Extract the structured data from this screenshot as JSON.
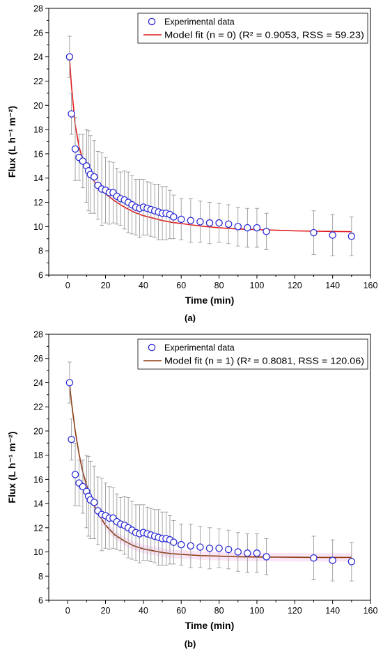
{
  "chart_data": [
    {
      "type": "scatter",
      "panel_label": "(a)",
      "xlabel": "Time (min)",
      "ylabel": "Flux (L h⁻¹ m⁻²)",
      "xlim": [
        -10,
        160
      ],
      "ylim": [
        6,
        28
      ],
      "xticks": [
        0,
        20,
        40,
        60,
        80,
        100,
        120,
        140,
        160
      ],
      "yticks": [
        6,
        8,
        10,
        12,
        14,
        16,
        18,
        20,
        22,
        24,
        26,
        28
      ],
      "grid": false,
      "legend_position": "top-right",
      "colors": {
        "points": "#2b2bd6",
        "fit": "#e31a1c",
        "errorbars": "#9a9a9a"
      },
      "series": [
        {
          "name": "Experimental data",
          "kind": "scatter",
          "x": [
            1,
            2,
            4,
            6,
            8,
            10,
            11,
            12,
            14,
            16,
            18,
            20,
            22,
            24,
            26,
            28,
            30,
            32,
            34,
            36,
            38,
            40,
            42,
            44,
            46,
            48,
            50,
            52,
            54,
            56,
            60,
            65,
            70,
            75,
            80,
            85,
            90,
            95,
            100,
            105,
            130,
            140,
            150
          ],
          "y": [
            24.0,
            19.3,
            16.4,
            15.7,
            15.4,
            15.0,
            14.6,
            14.3,
            14.1,
            13.4,
            13.1,
            13.0,
            12.8,
            12.8,
            12.5,
            12.3,
            12.2,
            12.0,
            11.8,
            11.6,
            11.5,
            11.6,
            11.5,
            11.4,
            11.3,
            11.2,
            11.1,
            11.1,
            11.0,
            10.8,
            10.6,
            10.5,
            10.4,
            10.3,
            10.3,
            10.2,
            10.0,
            9.9,
            9.9,
            9.6,
            9.5,
            9.3,
            9.2
          ],
          "yerr": [
            1.7,
            1.7,
            2.6,
            1.9,
            2.2,
            3.0,
            3.3,
            3.2,
            3.0,
            2.8,
            3.0,
            2.7,
            2.6,
            2.5,
            2.3,
            2.2,
            2.4,
            2.5,
            2.4,
            2.3,
            2.4,
            2.3,
            2.2,
            2.2,
            2.2,
            2.3,
            2.2,
            2.2,
            2.0,
            1.8,
            1.7,
            1.8,
            1.7,
            1.7,
            1.6,
            1.6,
            1.6,
            1.6,
            1.6,
            1.5,
            1.8,
            1.7,
            1.6
          ]
        },
        {
          "name": "Model fit (n = 0) (R² = 0.9053, RSS = 59.23)",
          "kind": "line",
          "x": [
            1,
            2,
            4,
            6,
            8,
            10,
            12,
            15,
            20,
            25,
            30,
            35,
            40,
            45,
            50,
            55,
            60,
            70,
            80,
            90,
            100,
            110,
            120,
            130,
            140,
            150
          ],
          "y": [
            23.8,
            21.6,
            18.4,
            16.6,
            15.5,
            14.8,
            14.2,
            13.5,
            12.7,
            12.1,
            11.6,
            11.2,
            10.9,
            10.7,
            10.5,
            10.35,
            10.25,
            10.05,
            9.9,
            9.8,
            9.75,
            9.7,
            9.65,
            9.62,
            9.6,
            9.58
          ]
        }
      ]
    },
    {
      "type": "scatter",
      "panel_label": "(b)",
      "xlabel": "Time (min)",
      "ylabel": "Flux (L h⁻¹ m⁻²)",
      "xlim": [
        -10,
        160
      ],
      "ylim": [
        6,
        28
      ],
      "xticks": [
        0,
        20,
        40,
        60,
        80,
        100,
        120,
        140,
        160
      ],
      "yticks": [
        6,
        8,
        10,
        12,
        14,
        16,
        18,
        20,
        22,
        24,
        26,
        28
      ],
      "grid": false,
      "legend_position": "top-right",
      "colors": {
        "points": "#2b2bd6",
        "fit": "#8b3a0e",
        "errorbars": "#9a9a9a",
        "band": "#f7d6f0"
      },
      "series": [
        {
          "name": "Experimental data",
          "kind": "scatter",
          "x": [
            1,
            2,
            4,
            6,
            8,
            10,
            11,
            12,
            14,
            16,
            18,
            20,
            22,
            24,
            26,
            28,
            30,
            32,
            34,
            36,
            38,
            40,
            42,
            44,
            46,
            48,
            50,
            52,
            54,
            56,
            60,
            65,
            70,
            75,
            80,
            85,
            90,
            95,
            100,
            105,
            130,
            140,
            150
          ],
          "y": [
            24.0,
            19.3,
            16.4,
            15.7,
            15.4,
            15.0,
            14.6,
            14.3,
            14.1,
            13.4,
            13.1,
            13.0,
            12.8,
            12.8,
            12.5,
            12.3,
            12.2,
            12.0,
            11.8,
            11.6,
            11.5,
            11.6,
            11.5,
            11.4,
            11.3,
            11.2,
            11.1,
            11.1,
            11.0,
            10.8,
            10.6,
            10.5,
            10.4,
            10.3,
            10.3,
            10.2,
            10.0,
            9.9,
            9.9,
            9.6,
            9.5,
            9.3,
            9.2
          ],
          "yerr": [
            1.7,
            1.7,
            2.6,
            1.9,
            2.2,
            3.0,
            3.3,
            3.2,
            3.0,
            2.8,
            3.0,
            2.7,
            2.6,
            2.5,
            2.3,
            2.2,
            2.4,
            2.5,
            2.4,
            2.3,
            2.4,
            2.3,
            2.2,
            2.2,
            2.2,
            2.3,
            2.2,
            2.2,
            2.0,
            1.8,
            1.7,
            1.8,
            1.7,
            1.7,
            1.6,
            1.6,
            1.6,
            1.6,
            1.6,
            1.5,
            1.8,
            1.7,
            1.6
          ]
        },
        {
          "name": "Model fit (n = 1) (R² = 0.8081, RSS = 120.06)",
          "kind": "line",
          "x": [
            1,
            2,
            4,
            6,
            8,
            10,
            12,
            15,
            20,
            25,
            30,
            35,
            40,
            45,
            50,
            55,
            60,
            70,
            80,
            90,
            100,
            110,
            120,
            130,
            140,
            150
          ],
          "y": [
            23.9,
            22.4,
            20.0,
            18.1,
            16.6,
            15.5,
            14.6,
            13.5,
            12.2,
            11.4,
            10.9,
            10.5,
            10.25,
            10.1,
            9.95,
            9.85,
            9.8,
            9.7,
            9.65,
            9.6,
            9.58,
            9.57,
            9.56,
            9.55,
            9.55,
            9.55
          ]
        }
      ]
    }
  ]
}
